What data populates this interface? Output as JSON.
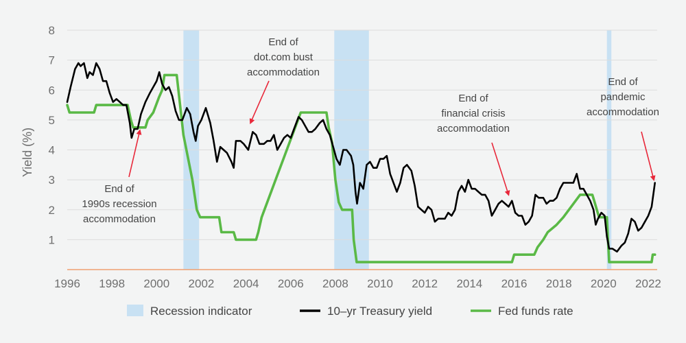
{
  "chart_data": {
    "type": "line",
    "title": "",
    "xlabel": "",
    "ylabel": "Yield (%)",
    "xlim": [
      1996,
      2022.4
    ],
    "ylim": [
      0,
      8
    ],
    "x_ticks": [
      "1996",
      "1998",
      "2000",
      "2002",
      "2004",
      "2006",
      "2008",
      "2010",
      "2012",
      "2014",
      "2016",
      "2018",
      "2020",
      "2022"
    ],
    "y_ticks": [
      "1",
      "2",
      "3",
      "4",
      "5",
      "6",
      "7",
      "8"
    ],
    "grid": "horizontal",
    "legend_position": "bottom",
    "legend": [
      {
        "label": "Recession indicator",
        "kind": "band",
        "color": "#c8e1f3"
      },
      {
        "label": "10–yr Treasury yield",
        "kind": "line",
        "color": "#000000"
      },
      {
        "label": "Fed funds rate",
        "kind": "line",
        "color": "#5ab946"
      }
    ],
    "recessions": [
      [
        2001.2,
        2001.9
      ],
      [
        2007.95,
        2009.5
      ],
      [
        2020.15,
        2020.35
      ]
    ],
    "series": [
      {
        "name": "10–yr Treasury yield",
        "color": "#000000",
        "points": [
          [
            1996.0,
            5.6
          ],
          [
            1996.15,
            6.1
          ],
          [
            1996.35,
            6.7
          ],
          [
            1996.5,
            6.9
          ],
          [
            1996.6,
            6.8
          ],
          [
            1996.75,
            6.9
          ],
          [
            1996.9,
            6.4
          ],
          [
            1997.0,
            6.6
          ],
          [
            1997.15,
            6.5
          ],
          [
            1997.3,
            6.9
          ],
          [
            1997.45,
            6.7
          ],
          [
            1997.6,
            6.3
          ],
          [
            1997.75,
            6.3
          ],
          [
            1997.9,
            5.9
          ],
          [
            1998.05,
            5.6
          ],
          [
            1998.2,
            5.7
          ],
          [
            1998.35,
            5.6
          ],
          [
            1998.5,
            5.5
          ],
          [
            1998.65,
            5.5
          ],
          [
            1998.8,
            4.9
          ],
          [
            1998.88,
            4.4
          ],
          [
            1999.0,
            4.7
          ],
          [
            1999.15,
            4.7
          ],
          [
            1999.3,
            5.2
          ],
          [
            1999.5,
            5.6
          ],
          [
            1999.7,
            5.9
          ],
          [
            1999.85,
            6.1
          ],
          [
            2000.0,
            6.3
          ],
          [
            2000.12,
            6.6
          ],
          [
            2000.25,
            6.2
          ],
          [
            2000.4,
            6.0
          ],
          [
            2000.55,
            6.1
          ],
          [
            2000.7,
            5.8
          ],
          [
            2000.85,
            5.3
          ],
          [
            2001.0,
            5.0
          ],
          [
            2001.15,
            5.0
          ],
          [
            2001.35,
            5.4
          ],
          [
            2001.5,
            5.2
          ],
          [
            2001.65,
            4.6
          ],
          [
            2001.75,
            4.3
          ],
          [
            2001.85,
            4.8
          ],
          [
            2002.0,
            5.0
          ],
          [
            2002.2,
            5.4
          ],
          [
            2002.4,
            4.9
          ],
          [
            2002.55,
            4.3
          ],
          [
            2002.7,
            3.6
          ],
          [
            2002.85,
            4.1
          ],
          [
            2003.0,
            4.0
          ],
          [
            2003.15,
            3.9
          ],
          [
            2003.35,
            3.6
          ],
          [
            2003.45,
            3.4
          ],
          [
            2003.55,
            4.3
          ],
          [
            2003.75,
            4.3
          ],
          [
            2003.9,
            4.2
          ],
          [
            2004.1,
            4.0
          ],
          [
            2004.3,
            4.6
          ],
          [
            2004.45,
            4.5
          ],
          [
            2004.6,
            4.2
          ],
          [
            2004.8,
            4.2
          ],
          [
            2004.95,
            4.3
          ],
          [
            2005.1,
            4.3
          ],
          [
            2005.25,
            4.5
          ],
          [
            2005.4,
            4.0
          ],
          [
            2005.55,
            4.2
          ],
          [
            2005.7,
            4.4
          ],
          [
            2005.85,
            4.5
          ],
          [
            2006.0,
            4.4
          ],
          [
            2006.15,
            4.7
          ],
          [
            2006.35,
            5.1
          ],
          [
            2006.5,
            5.0
          ],
          [
            2006.65,
            4.8
          ],
          [
            2006.8,
            4.6
          ],
          [
            2006.95,
            4.6
          ],
          [
            2007.1,
            4.7
          ],
          [
            2007.3,
            4.9
          ],
          [
            2007.45,
            5.0
          ],
          [
            2007.6,
            4.7
          ],
          [
            2007.75,
            4.5
          ],
          [
            2007.9,
            4.1
          ],
          [
            2008.05,
            3.7
          ],
          [
            2008.2,
            3.5
          ],
          [
            2008.35,
            4.0
          ],
          [
            2008.5,
            4.0
          ],
          [
            2008.7,
            3.8
          ],
          [
            2008.8,
            3.5
          ],
          [
            2008.9,
            2.6
          ],
          [
            2008.97,
            2.2
          ],
          [
            2009.1,
            2.9
          ],
          [
            2009.25,
            2.7
          ],
          [
            2009.4,
            3.5
          ],
          [
            2009.55,
            3.6
          ],
          [
            2009.7,
            3.4
          ],
          [
            2009.85,
            3.4
          ],
          [
            2010.0,
            3.7
          ],
          [
            2010.15,
            3.7
          ],
          [
            2010.3,
            3.8
          ],
          [
            2010.45,
            3.2
          ],
          [
            2010.6,
            2.9
          ],
          [
            2010.75,
            2.6
          ],
          [
            2010.9,
            2.9
          ],
          [
            2011.05,
            3.4
          ],
          [
            2011.2,
            3.5
          ],
          [
            2011.4,
            3.3
          ],
          [
            2011.55,
            2.8
          ],
          [
            2011.7,
            2.1
          ],
          [
            2011.85,
            2.0
          ],
          [
            2012.0,
            1.9
          ],
          [
            2012.15,
            2.1
          ],
          [
            2012.3,
            2.0
          ],
          [
            2012.45,
            1.6
          ],
          [
            2012.6,
            1.7
          ],
          [
            2012.75,
            1.7
          ],
          [
            2012.9,
            1.7
          ],
          [
            2013.05,
            1.9
          ],
          [
            2013.2,
            1.8
          ],
          [
            2013.35,
            2.0
          ],
          [
            2013.5,
            2.6
          ],
          [
            2013.65,
            2.8
          ],
          [
            2013.8,
            2.6
          ],
          [
            2013.95,
            3.0
          ],
          [
            2014.1,
            2.7
          ],
          [
            2014.25,
            2.7
          ],
          [
            2014.4,
            2.6
          ],
          [
            2014.55,
            2.5
          ],
          [
            2014.7,
            2.5
          ],
          [
            2014.85,
            2.3
          ],
          [
            2015.0,
            1.8
          ],
          [
            2015.15,
            2.0
          ],
          [
            2015.3,
            2.2
          ],
          [
            2015.45,
            2.3
          ],
          [
            2015.6,
            2.2
          ],
          [
            2015.75,
            2.1
          ],
          [
            2015.9,
            2.3
          ],
          [
            2016.05,
            1.9
          ],
          [
            2016.2,
            1.8
          ],
          [
            2016.35,
            1.8
          ],
          [
            2016.5,
            1.5
          ],
          [
            2016.65,
            1.6
          ],
          [
            2016.8,
            1.8
          ],
          [
            2016.95,
            2.5
          ],
          [
            2017.1,
            2.4
          ],
          [
            2017.3,
            2.4
          ],
          [
            2017.45,
            2.2
          ],
          [
            2017.6,
            2.3
          ],
          [
            2017.75,
            2.3
          ],
          [
            2017.9,
            2.4
          ],
          [
            2018.05,
            2.7
          ],
          [
            2018.2,
            2.9
          ],
          [
            2018.35,
            2.9
          ],
          [
            2018.5,
            2.9
          ],
          [
            2018.65,
            2.9
          ],
          [
            2018.8,
            3.2
          ],
          [
            2018.95,
            2.7
          ],
          [
            2019.1,
            2.7
          ],
          [
            2019.25,
            2.5
          ],
          [
            2019.4,
            2.3
          ],
          [
            2019.55,
            2.0
          ],
          [
            2019.65,
            1.5
          ],
          [
            2019.75,
            1.7
          ],
          [
            2019.9,
            1.9
          ],
          [
            2020.05,
            1.8
          ],
          [
            2020.15,
            1.1
          ],
          [
            2020.25,
            0.7
          ],
          [
            2020.4,
            0.7
          ],
          [
            2020.6,
            0.6
          ],
          [
            2020.8,
            0.8
          ],
          [
            2020.95,
            0.9
          ],
          [
            2021.1,
            1.2
          ],
          [
            2021.25,
            1.7
          ],
          [
            2021.4,
            1.6
          ],
          [
            2021.55,
            1.3
          ],
          [
            2021.7,
            1.4
          ],
          [
            2021.85,
            1.6
          ],
          [
            2022.0,
            1.8
          ],
          [
            2022.15,
            2.1
          ],
          [
            2022.3,
            2.9
          ]
        ]
      },
      {
        "name": "Fed funds rate",
        "color": "#5ab946",
        "points": [
          [
            1996.0,
            5.5
          ],
          [
            1996.1,
            5.25
          ],
          [
            1997.2,
            5.25
          ],
          [
            1997.3,
            5.5
          ],
          [
            1998.7,
            5.5
          ],
          [
            1998.85,
            5.0
          ],
          [
            1998.95,
            4.75
          ],
          [
            1999.5,
            4.75
          ],
          [
            1999.6,
            5.0
          ],
          [
            1999.85,
            5.25
          ],
          [
            2000.1,
            5.75
          ],
          [
            2000.25,
            6.0
          ],
          [
            2000.35,
            6.5
          ],
          [
            2000.9,
            6.5
          ],
          [
            2001.05,
            5.5
          ],
          [
            2001.2,
            4.5
          ],
          [
            2001.4,
            3.75
          ],
          [
            2001.6,
            3.0
          ],
          [
            2001.8,
            2.0
          ],
          [
            2001.95,
            1.75
          ],
          [
            2002.8,
            1.75
          ],
          [
            2002.9,
            1.25
          ],
          [
            2003.45,
            1.25
          ],
          [
            2003.55,
            1.0
          ],
          [
            2004.45,
            1.0
          ],
          [
            2004.55,
            1.25
          ],
          [
            2004.7,
            1.75
          ],
          [
            2004.95,
            2.25
          ],
          [
            2005.2,
            2.75
          ],
          [
            2005.45,
            3.25
          ],
          [
            2005.7,
            3.75
          ],
          [
            2005.95,
            4.25
          ],
          [
            2006.2,
            4.75
          ],
          [
            2006.45,
            5.25
          ],
          [
            2007.6,
            5.25
          ],
          [
            2007.7,
            4.75
          ],
          [
            2007.85,
            4.25
          ],
          [
            2008.0,
            3.0
          ],
          [
            2008.15,
            2.25
          ],
          [
            2008.3,
            2.0
          ],
          [
            2008.75,
            2.0
          ],
          [
            2008.82,
            1.0
          ],
          [
            2008.95,
            0.25
          ],
          [
            2015.9,
            0.25
          ],
          [
            2016.0,
            0.5
          ],
          [
            2016.9,
            0.5
          ],
          [
            2017.05,
            0.75
          ],
          [
            2017.3,
            1.0
          ],
          [
            2017.5,
            1.25
          ],
          [
            2017.9,
            1.5
          ],
          [
            2018.2,
            1.75
          ],
          [
            2018.45,
            2.0
          ],
          [
            2018.7,
            2.25
          ],
          [
            2018.95,
            2.5
          ],
          [
            2019.5,
            2.5
          ],
          [
            2019.6,
            2.25
          ],
          [
            2019.7,
            2.0
          ],
          [
            2019.8,
            1.75
          ],
          [
            2020.15,
            1.75
          ],
          [
            2020.2,
            1.0
          ],
          [
            2020.25,
            0.25
          ],
          [
            2022.15,
            0.25
          ],
          [
            2022.2,
            0.5
          ],
          [
            2022.3,
            0.5
          ]
        ]
      }
    ],
    "annotations": [
      {
        "lines": [
          "End of",
          "dot.com bust",
          "accommodation"
        ],
        "target": [
          2004.2,
          4.9
        ]
      },
      {
        "lines": [
          "End of",
          "1990s recession",
          "accommodation"
        ],
        "target": [
          1999.25,
          4.65
        ]
      },
      {
        "lines": [
          "End of",
          "financial crisis",
          "accommodation"
        ],
        "target": [
          2015.75,
          2.5
        ]
      },
      {
        "lines": [
          "End of",
          "pandemic",
          "accommodation"
        ],
        "target": [
          2022.25,
          3.0
        ]
      }
    ]
  }
}
